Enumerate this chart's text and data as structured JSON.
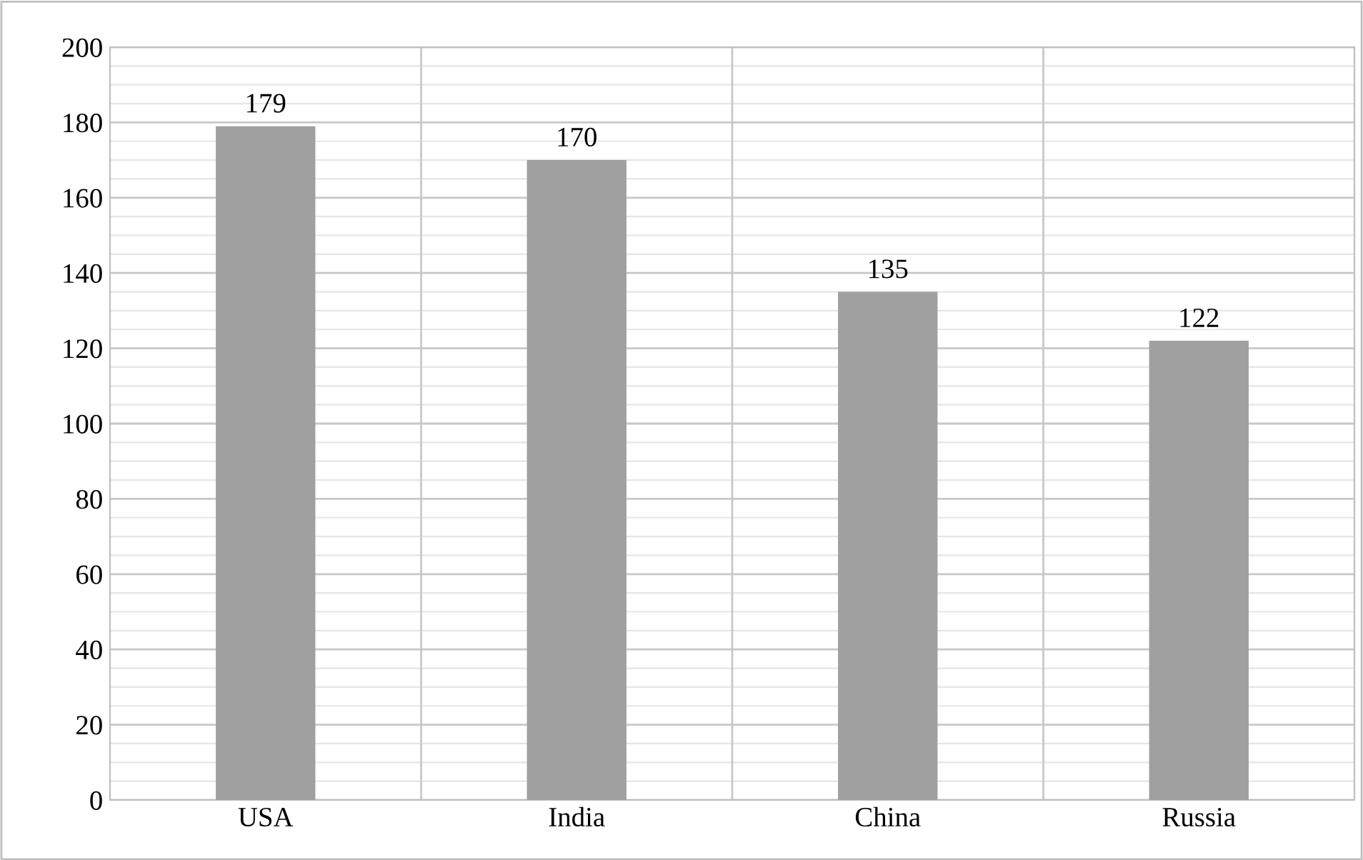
{
  "chart_data": {
    "type": "bar",
    "categories": [
      "USA",
      "India",
      "China",
      "Russia"
    ],
    "values": [
      179,
      170,
      135,
      122
    ],
    "color": "#a0a0a0",
    "ylim": [
      0,
      200
    ],
    "yticks": [
      0,
      20,
      40,
      60,
      80,
      100,
      120,
      140,
      160,
      180,
      200
    ],
    "grid": true,
    "data_labels": true
  }
}
